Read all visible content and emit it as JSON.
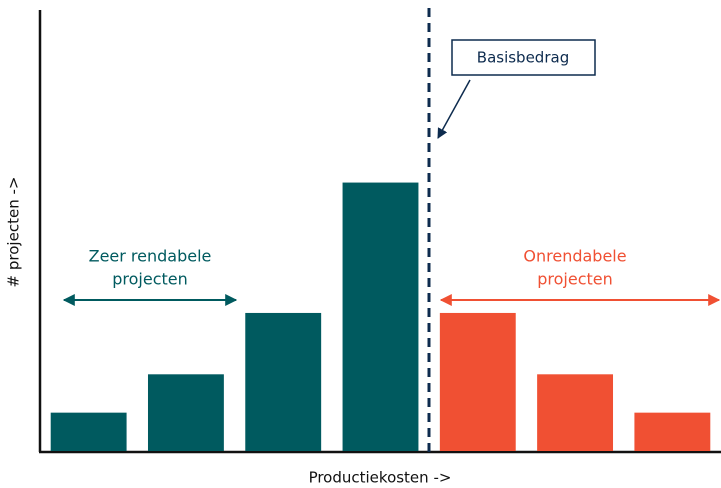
{
  "chart_data": {
    "type": "bar",
    "x_label": "Productiekosten ->",
    "y_label": "# projecten ->",
    "categories": [
      null,
      null,
      null,
      null,
      null,
      null,
      null
    ],
    "values": [
      1,
      2,
      3.6,
      7,
      3.6,
      2,
      1
    ],
    "colors": [
      "#005a5f",
      "#005a5f",
      "#005a5f",
      "#005a5f",
      "#f05033",
      "#f05033",
      "#f05033"
    ],
    "ylim": [
      0,
      11.5
    ],
    "annotations": [
      {
        "text": "Basisbedrag"
      },
      {
        "lines": [
          "Zeer rendabele",
          "projecten"
        ],
        "color": "#005a5f"
      },
      {
        "lines": [
          "Onrendabele",
          "projecten"
        ],
        "color": "#f05033"
      }
    ]
  }
}
